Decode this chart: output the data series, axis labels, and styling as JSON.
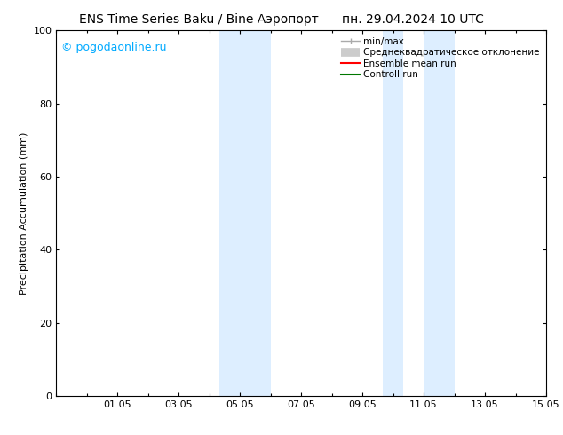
{
  "title_left": "ENS Time Series Baku / Bine Аэропорт",
  "title_right": "пн. 29.04.2024 10 UTC",
  "ylabel": "Precipitation Accumulation (mm)",
  "watermark": "© pogodaonline.ru",
  "watermark_color": "#00aaff",
  "ylim": [
    0,
    100
  ],
  "xlim": [
    0,
    16
  ],
  "xtick_labels": [
    "01.05",
    "03.05",
    "05.05",
    "07.05",
    "09.05",
    "11.05",
    "13.05",
    "15.05"
  ],
  "xtick_positions": [
    2,
    4,
    6,
    8,
    10,
    12,
    14,
    16
  ],
  "ytick_labels": [
    "0",
    "20",
    "40",
    "60",
    "80",
    "100"
  ],
  "ytick_positions": [
    0,
    20,
    40,
    60,
    80,
    100
  ],
  "shaded_regions": [
    {
      "x_start": 5.33,
      "x_end": 6.0,
      "color": "#ddeeff"
    },
    {
      "x_start": 6.0,
      "x_end": 7.0,
      "color": "#ddeeff"
    },
    {
      "x_start": 10.67,
      "x_end": 11.33,
      "color": "#ddeeff"
    },
    {
      "x_start": 12.0,
      "x_end": 13.0,
      "color": "#ddeeff"
    }
  ],
  "legend_items": [
    {
      "label": "min/max",
      "color": "#aaaaaa",
      "lw": 1.5
    },
    {
      "label": "Среднеквадратическое отклонение",
      "color": "#cccccc",
      "lw": 6
    },
    {
      "label": "Ensemble mean run",
      "color": "#ff0000",
      "lw": 1.5
    },
    {
      "label": "Controll run",
      "color": "#007700",
      "lw": 1.5
    }
  ],
  "background_color": "#ffffff",
  "plot_bg_color": "#ffffff",
  "border_color": "#000000",
  "title_fontsize": 10,
  "axis_label_fontsize": 8,
  "tick_fontsize": 8,
  "watermark_fontsize": 9,
  "legend_fontsize": 7.5
}
